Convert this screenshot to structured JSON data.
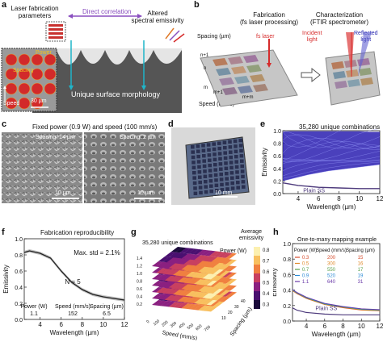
{
  "colors": {
    "panel_gray": "#6e6e6e",
    "purple_arrow": "#8a4fbf",
    "cyan_arrow": "#1fb5c9",
    "red_laser": "#d62b2b",
    "plot_blue": "#2a1fb0",
    "sem_bg": "#8a8a8a",
    "plain_ss": "#4d3a7c"
  },
  "panels": {
    "a": {
      "label": "a",
      "laser_params": "Laser fabrication\nparameters",
      "direct_correlation": "Direct correlation",
      "altered": "Altered\nspectral emissivity",
      "morphology": "Unique surface morphology",
      "spacing": "Spacing",
      "power": "Power",
      "speed": "Speed",
      "scale": "30 µm"
    },
    "b": {
      "label": "b",
      "fab_title": "Fabrication\n(fs laser processing)",
      "char_title": "Characterization\n(FTIR spectrometer)",
      "spacing_axis": "Spacing (µm)",
      "speed_axis": "Speed (mm/s)",
      "fs_laser": "fs laser",
      "incident": "Incident\nlight",
      "reflected": "Reflected\nlight",
      "n_labels": [
        "n+1",
        "n",
        "m",
        "m+1",
        "m+m"
      ]
    },
    "c": {
      "label": "c",
      "title": "Fixed power (0.9 W) and speed (100 mm/s)",
      "left_spacing": "Spacing: 14 µm",
      "right_spacing": "Spacing: 2 µm",
      "scale_left": "10 µm",
      "scale_right": "10 µm"
    },
    "d": {
      "label": "d",
      "scale": "10 mm"
    },
    "e": {
      "label": "e",
      "title": "35,280 unique combinations",
      "plain": "Plain SS",
      "ylabel": "Emissivity",
      "xlabel": "Wavelength (µm)"
    },
    "f": {
      "label": "f",
      "title": "Fabrication reproducibility",
      "maxstd": "Max. std = 2.1%",
      "n": "N = 5",
      "params_header": [
        "Power (W)",
        "Speed (mm/s)",
        "Spacing (µm)"
      ],
      "params_values": [
        "1.1",
        "152",
        "6.5"
      ],
      "ylabel": "Emissivity",
      "xlabel": "Wavelength (µm)"
    },
    "g": {
      "label": "g",
      "title": "35,280 unique combinations",
      "colorbar_title": "Average\nemissivity",
      "power_axis": "Power (W)",
      "speed_axis": "Speed (mm/s)",
      "spacing_axis": "Spacing (µm)",
      "cb_ticks": [
        "0.8",
        "0.7",
        "0.6",
        "0.5",
        "0.4",
        "0.3"
      ],
      "speed_ticks": [
        "0",
        "100",
        "200",
        "300",
        "400",
        "500",
        "600",
        "700"
      ],
      "spacing_ticks": [
        "10",
        "20",
        "30",
        "40"
      ],
      "power_ticks": [
        "0.2",
        "0.4",
        "0.6",
        "0.8",
        "1.0",
        "1.2",
        "1.4"
      ]
    },
    "h": {
      "label": "h",
      "title": "One-to-many mapping example",
      "header": [
        "Power (W)",
        "Speed (mm/s)",
        "Spacing (µm)"
      ],
      "rows": [
        {
          "power": "0.3",
          "speed": "200",
          "spacing": "15",
          "color": "#d64a2a"
        },
        {
          "power": "0.5",
          "speed": "300",
          "spacing": "16",
          "color": "#e08a2a"
        },
        {
          "power": "0.7",
          "speed": "550",
          "spacing": "17",
          "color": "#5aa04a"
        },
        {
          "power": "0.9",
          "speed": "520",
          "spacing": "19",
          "color": "#2a8ad6"
        },
        {
          "power": "1.1",
          "speed": "640",
          "spacing": "31",
          "color": "#6a3aa8"
        }
      ],
      "plain": "Plain SS",
      "ylabel": "Emissivity",
      "xlabel": "Wavelength (µm)"
    }
  },
  "chart_data": [
    {
      "panel": "e",
      "type": "line",
      "title": "35,280 unique combinations",
      "xlabel": "Wavelength (µm)",
      "ylabel": "Emissivity",
      "xlim": [
        2.5,
        12
      ],
      "ylim": [
        0,
        1
      ],
      "xticks": [
        4,
        6,
        8,
        10,
        12
      ],
      "yticks": [
        0,
        0.2,
        0.4,
        0.6,
        0.8,
        1.0
      ],
      "series": [
        {
          "name": "Plain SS",
          "x": [
            2.5,
            4,
            6,
            8,
            10,
            12
          ],
          "y": [
            0.17,
            0.13,
            0.1,
            0.09,
            0.08,
            0.08
          ]
        }
      ]
    },
    {
      "panel": "f",
      "type": "line",
      "title": "Fabrication reproducibility",
      "xlabel": "Wavelength (µm)",
      "ylabel": "Emissivity",
      "xlim": [
        2.5,
        12
      ],
      "ylim": [
        0,
        1
      ],
      "xticks": [
        4,
        6,
        8,
        10,
        12
      ],
      "yticks": [
        0,
        0.2,
        0.4,
        0.6,
        0.8,
        1.0
      ],
      "series": [
        {
          "name": "",
          "x": [
            2.5,
            3,
            4,
            5,
            6,
            7,
            8,
            9,
            10,
            11,
            12
          ],
          "y": [
            0.83,
            0.85,
            0.82,
            0.76,
            0.6,
            0.46,
            0.37,
            0.31,
            0.28,
            0.26,
            0.24
          ]
        }
      ]
    },
    {
      "panel": "h",
      "type": "line",
      "title": "One-to-many mapping example",
      "xlabel": "Wavelength (µm)",
      "ylabel": "Emissivity",
      "xlim": [
        2.5,
        12
      ],
      "ylim": [
        0,
        1
      ],
      "xticks": [
        4,
        6,
        8,
        10,
        12
      ],
      "yticks": [
        0,
        0.2,
        0.4,
        0.6,
        0.8,
        1.0
      ],
      "series": [
        {
          "name": "",
          "x": [
            2.5,
            3,
            4,
            6,
            8,
            10,
            12
          ],
          "y": [
            0.4,
            0.36,
            0.3,
            0.22,
            0.18,
            0.15,
            0.14
          ]
        },
        {
          "name": "Plain SS",
          "x": [
            2.5,
            3,
            4,
            6,
            8,
            10,
            12
          ],
          "y": [
            0.17,
            0.14,
            0.11,
            0.09,
            0.08,
            0.08,
            0.08
          ]
        }
      ]
    }
  ]
}
